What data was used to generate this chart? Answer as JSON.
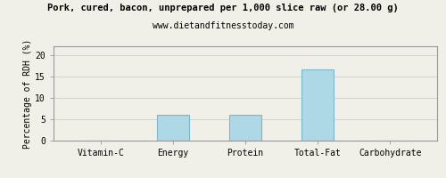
{
  "title": "Pork, cured, bacon, unprepared per 1,000 slice raw (or 28.00 g)",
  "subtitle": "www.dietandfitnesstoday.com",
  "categories": [
    "Vitamin-C",
    "Energy",
    "Protein",
    "Total-Fat",
    "Carbohydrate"
  ],
  "values": [
    0,
    6.0,
    6.0,
    16.7,
    0.1
  ],
  "bar_color": "#add8e6",
  "bar_edge_color": "#7ab8cc",
  "ylabel": "Percentage of RDH (%)",
  "ylim": [
    0,
    22
  ],
  "yticks": [
    0,
    5,
    10,
    15,
    20
  ],
  "title_fontsize": 7.5,
  "subtitle_fontsize": 7,
  "ylabel_fontsize": 7,
  "tick_fontsize": 7,
  "bg_color": "#f0f0e8",
  "plot_bg_color": "#f0f0e8",
  "grid_color": "#cccccc",
  "border_color": "#999999",
  "bar_width": 0.45
}
